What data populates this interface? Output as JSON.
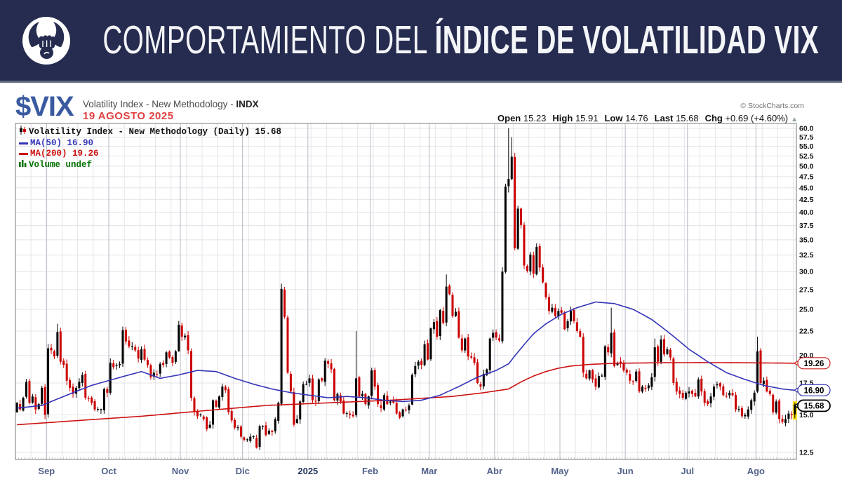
{
  "banner": {
    "title_regular": "COMPORTAMIENTO DEL ",
    "title_bold": "ÍNDICE DE VOLATILIDAD VIX",
    "bg_color": "#262c4f"
  },
  "header": {
    "symbol": "$VIX",
    "name": "Volatility Index - New Methodology - ",
    "exchange": "INDX",
    "date": "19 AGOSTO 2025",
    "copyright": "© StockCharts.com",
    "quote": {
      "open_label": "Open",
      "open": "15.23",
      "high_label": "High",
      "high": "15.91",
      "low_label": "Low",
      "low": "14.76",
      "last_label": "Last",
      "last": "15.68",
      "chg_label": "Chg",
      "chg": "+0.69 (+4.60%)",
      "arrow": "▲"
    }
  },
  "legend": {
    "series": "Volatility Index - New Methodology (Daily) 15.68",
    "ma50": "MA(50) 16.90",
    "ma200": "MA(200) 19.26",
    "volume": "Volume undef"
  },
  "chart_data": {
    "type": "candlestick",
    "log_scale": true,
    "y_range": [
      12.09,
      61.45
    ],
    "y_ticks": [
      "60.0",
      "57.5",
      "55.0",
      "52.5",
      "50.0",
      "47.5",
      "45.0",
      "42.5",
      "40.0",
      "37.5",
      "35.0",
      "32.5",
      "30.0",
      "27.5",
      "25.0",
      "22.5",
      "20.0",
      "17.5",
      "15.0",
      "12.5"
    ],
    "x_months": [
      {
        "label": "Sep",
        "i": 10
      },
      {
        "label": "Oct",
        "i": 30
      },
      {
        "label": "Nov",
        "i": 53
      },
      {
        "label": "Dic",
        "i": 73
      },
      {
        "label": "2025",
        "i": 94,
        "bold": true
      },
      {
        "label": "Feb",
        "i": 114
      },
      {
        "label": "Mar",
        "i": 133
      },
      {
        "label": "Abr",
        "i": 154
      },
      {
        "label": "May",
        "i": 175
      },
      {
        "label": "Jun",
        "i": 196
      },
      {
        "label": "Jul",
        "i": 216
      },
      {
        "label": "Ago",
        "i": 238
      }
    ],
    "first_open": 15.2,
    "closes": [
      15.9,
      15.4,
      16.3,
      17.6,
      15.9,
      16.4,
      15.4,
      15.8,
      17.1,
      15.0,
      20.7,
      20.5,
      19.9,
      22.4,
      19.4,
      19.1,
      17.7,
      17.1,
      16.6,
      17.1,
      17.6,
      18.2,
      16.3,
      16.2,
      15.9,
      15.4,
      15.4,
      15.4,
      17.0,
      16.7,
      19.3,
      18.9,
      19.1,
      19.2,
      22.6,
      21.4,
      20.9,
      20.9,
      20.5,
      19.7,
      20.6,
      19.6,
      19.1,
      18.0,
      18.4,
      18.2,
      19.2,
      19.1,
      20.3,
      19.8,
      19.3,
      20.4,
      23.2,
      21.9,
      22.0,
      20.5,
      16.3,
      15.2,
      14.9,
      15.0,
      14.7,
      14.0,
      14.3,
      16.1,
      15.6,
      16.4,
      17.2,
      16.9,
      15.2,
      14.6,
      14.1,
      14.1,
      13.5,
      13.3,
      13.3,
      13.5,
      13.5,
      12.8,
      14.2,
      14.2,
      13.6,
      13.9,
      13.8,
      14.7,
      15.9,
      27.6,
      24.1,
      18.4,
      16.8,
      14.3,
      14.7,
      16.0,
      17.4,
      17.4,
      17.9,
      16.1,
      16.0,
      17.8,
      17.7,
      19.5,
      19.2,
      18.7,
      16.1,
      16.6,
      16.0,
      15.1,
      15.1,
      15.0,
      14.9,
      17.9,
      16.4,
      16.6,
      15.8,
      16.4,
      18.6,
      17.2,
      15.8,
      15.5,
      16.5,
      15.8,
      16.0,
      15.9,
      15.1,
      14.8,
      15.4,
      15.3,
      15.7,
      18.2,
      19.0,
      19.4,
      19.1,
      21.1,
      19.6,
      22.8,
      23.5,
      21.9,
      24.9,
      23.4,
      27.9,
      26.9,
      24.2,
      24.7,
      21.8,
      20.5,
      21.7,
      19.9,
      19.8,
      19.3,
      17.5,
      17.2,
      18.3,
      18.7,
      21.7,
      22.3,
      21.8,
      21.5,
      30.0,
      45.3,
      47.0,
      52.3,
      33.6,
      40.7,
      37.6,
      30.9,
      30.1,
      32.6,
      29.7,
      33.8,
      30.6,
      28.5,
      26.5,
      24.8,
      25.2,
      24.2,
      24.8,
      24.6,
      22.7,
      23.6,
      24.8,
      23.6,
      22.5,
      21.9,
      18.4,
      17.9,
      18.6,
      17.8,
      17.2,
      18.1,
      18.1,
      20.9,
      20.3,
      22.3,
      19.0,
      19.3,
      19.2,
      18.6,
      18.4,
      17.7,
      17.6,
      18.5,
      16.8,
      17.2,
      17.0,
      17.3,
      18.0,
      20.8,
      19.4,
      21.6,
      20.1,
      20.6,
      19.8,
      17.5,
      16.8,
      16.6,
      16.3,
      16.7,
      16.8,
      16.6,
      16.4,
      17.8,
      16.8,
      15.9,
      15.8,
      16.4,
      17.2,
      17.4,
      17.2,
      16.5,
      16.4,
      16.7,
      16.5,
      15.4,
      15.4,
      14.9,
      15.0,
      15.4,
      16.1,
      16.7,
      20.4,
      17.5,
      17.7,
      16.8,
      16.6,
      15.2,
      16.0,
      14.7,
      14.5,
      14.7,
      15.1,
      15.0,
      15.68
    ],
    "wick_overrides": {
      "13": {
        "h": 23.3
      },
      "34": {
        "h": 23.0
      },
      "85": {
        "h": 28.3
      },
      "109": {
        "h": 22.5
      },
      "138": {
        "h": 29.6
      },
      "158": {
        "h": 60.1,
        "l": 44.0
      },
      "159": {
        "h": 57.5
      },
      "191": {
        "h": 25.2
      },
      "205": {
        "h": 21.7
      },
      "238": {
        "h": 21.9
      },
      "250": {
        "h": 15.91,
        "l": 14.76
      }
    },
    "ma50": {
      "name": "MA(50)",
      "last": 16.9,
      "color": "#3434b8",
      "points": [
        [
          0,
          15.5
        ],
        [
          8,
          15.7
        ],
        [
          16,
          16.5
        ],
        [
          24,
          17.3
        ],
        [
          32,
          17.9
        ],
        [
          40,
          18.5
        ],
        [
          46,
          17.9
        ],
        [
          52,
          18.2
        ],
        [
          58,
          18.6
        ],
        [
          64,
          18.5
        ],
        [
          70,
          17.9
        ],
        [
          76,
          17.4
        ],
        [
          82,
          17.0
        ],
        [
          88,
          16.7
        ],
        [
          94,
          16.5
        ],
        [
          100,
          16.3
        ],
        [
          106,
          16.4
        ],
        [
          112,
          16.3
        ],
        [
          118,
          16.1
        ],
        [
          124,
          16.0
        ],
        [
          130,
          16.1
        ],
        [
          136,
          16.5
        ],
        [
          142,
          17.2
        ],
        [
          148,
          18.0
        ],
        [
          154,
          18.6
        ],
        [
          158,
          19.2
        ],
        [
          162,
          20.7
        ],
        [
          166,
          22.2
        ],
        [
          170,
          23.3
        ],
        [
          175,
          24.4
        ],
        [
          180,
          25.2
        ],
        [
          186,
          25.9
        ],
        [
          192,
          25.7
        ],
        [
          198,
          25.0
        ],
        [
          204,
          23.8
        ],
        [
          210,
          22.2
        ],
        [
          216,
          20.6
        ],
        [
          222,
          19.4
        ],
        [
          228,
          18.4
        ],
        [
          234,
          17.8
        ],
        [
          240,
          17.3
        ],
        [
          246,
          17.0
        ],
        [
          250,
          16.9
        ]
      ]
    },
    "ma200": {
      "name": "MA(200)",
      "last": 19.26,
      "color": "#cc1111",
      "points": [
        [
          0,
          14.3
        ],
        [
          20,
          14.6
        ],
        [
          40,
          14.9
        ],
        [
          60,
          15.3
        ],
        [
          80,
          15.7
        ],
        [
          100,
          15.9
        ],
        [
          120,
          16.1
        ],
        [
          140,
          16.4
        ],
        [
          150,
          16.7
        ],
        [
          158,
          17.0
        ],
        [
          162,
          17.6
        ],
        [
          166,
          18.1
        ],
        [
          170,
          18.5
        ],
        [
          174,
          18.8
        ],
        [
          178,
          19.0
        ],
        [
          184,
          19.15
        ],
        [
          192,
          19.25
        ],
        [
          205,
          19.3
        ],
        [
          220,
          19.32
        ],
        [
          235,
          19.3
        ],
        [
          250,
          19.26
        ]
      ]
    },
    "price_markers": [
      {
        "label": "19.26",
        "value": 19.26,
        "color": "#cc2222",
        "bold": false
      },
      {
        "label": "16.90",
        "value": 16.9,
        "color": "#3434b8",
        "bold": false
      },
      {
        "label": "15.68",
        "value": 15.68,
        "color": "#000000",
        "bold": true
      }
    ],
    "last_close": 15.68,
    "colors": {
      "up": "#000000",
      "down": "#cc0000",
      "highlight": "#ffdf00",
      "grid": "#e4e4ea",
      "grid_month": "#b6b9c4",
      "border": "#7a7a7a",
      "axis_text": "#111111",
      "month_text": "#51628a",
      "year_text": "#24365e"
    }
  }
}
